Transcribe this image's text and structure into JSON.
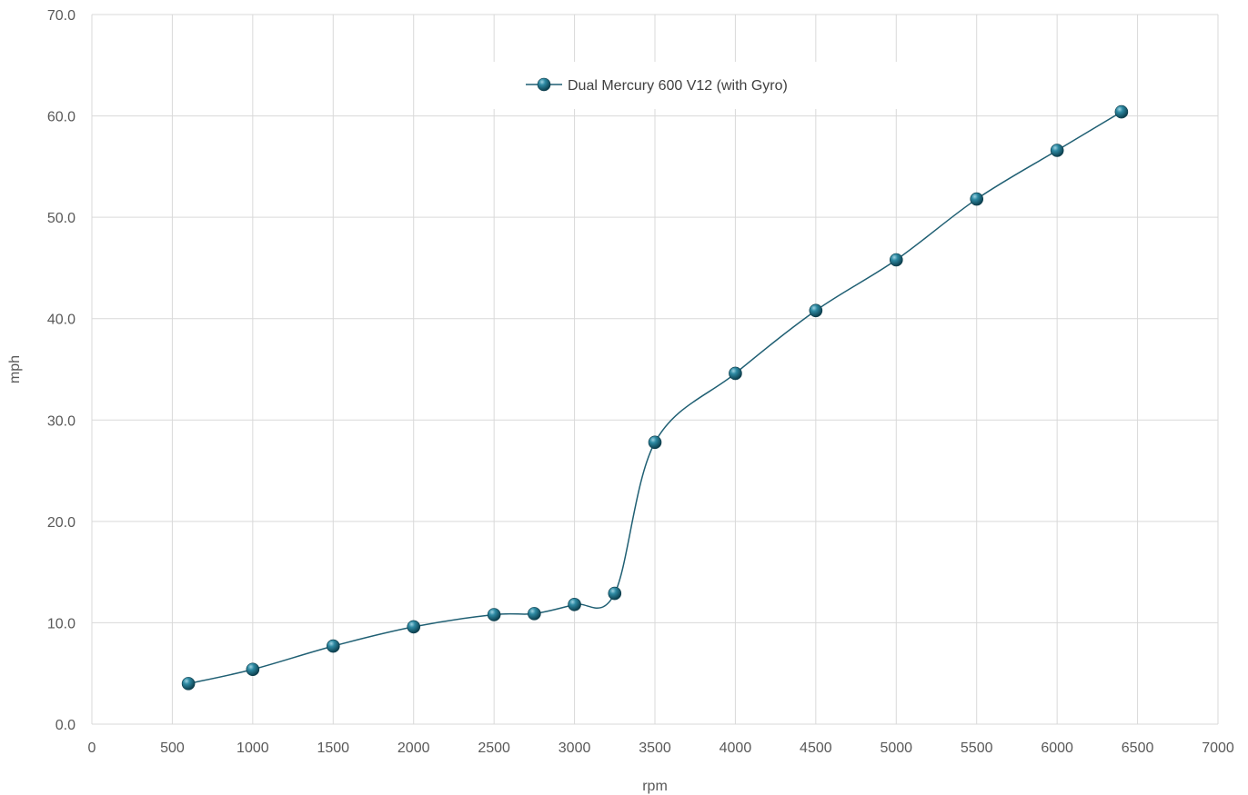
{
  "chart_data": {
    "type": "line",
    "title": "",
    "xlabel": "rpm",
    "ylabel": "mph",
    "xlim": [
      0,
      7000
    ],
    "ylim": [
      0,
      70
    ],
    "x_ticks": [
      0,
      500,
      1000,
      1500,
      2000,
      2500,
      3000,
      3500,
      4000,
      4500,
      5000,
      5500,
      6000,
      6500,
      7000
    ],
    "x_tick_labels": [
      "0",
      "500",
      "1000",
      "1500",
      "2000",
      "2500",
      "3000",
      "3500",
      "4000",
      "4500",
      "5000",
      "5500",
      "6000",
      "6500",
      "7000"
    ],
    "y_ticks": [
      0,
      10,
      20,
      30,
      40,
      50,
      60,
      70
    ],
    "y_tick_labels": [
      "0.0",
      "10.0",
      "20.0",
      "30.0",
      "40.0",
      "50.0",
      "60.0",
      "70.0"
    ],
    "grid": true,
    "legend_position": "top-center",
    "smooth": true,
    "series": [
      {
        "name": "Dual Mercury 600 V12 (with Gyro)",
        "color": "#1f5f73",
        "marker": "circle",
        "x": [
          600,
          1000,
          1500,
          2000,
          2500,
          2750,
          3000,
          3250,
          3500,
          4000,
          4500,
          5000,
          5500,
          6000,
          6400
        ],
        "y": [
          4.0,
          5.4,
          7.7,
          9.6,
          10.8,
          10.9,
          11.8,
          12.9,
          27.8,
          34.6,
          40.8,
          45.8,
          51.8,
          56.6,
          60.4
        ]
      }
    ]
  }
}
